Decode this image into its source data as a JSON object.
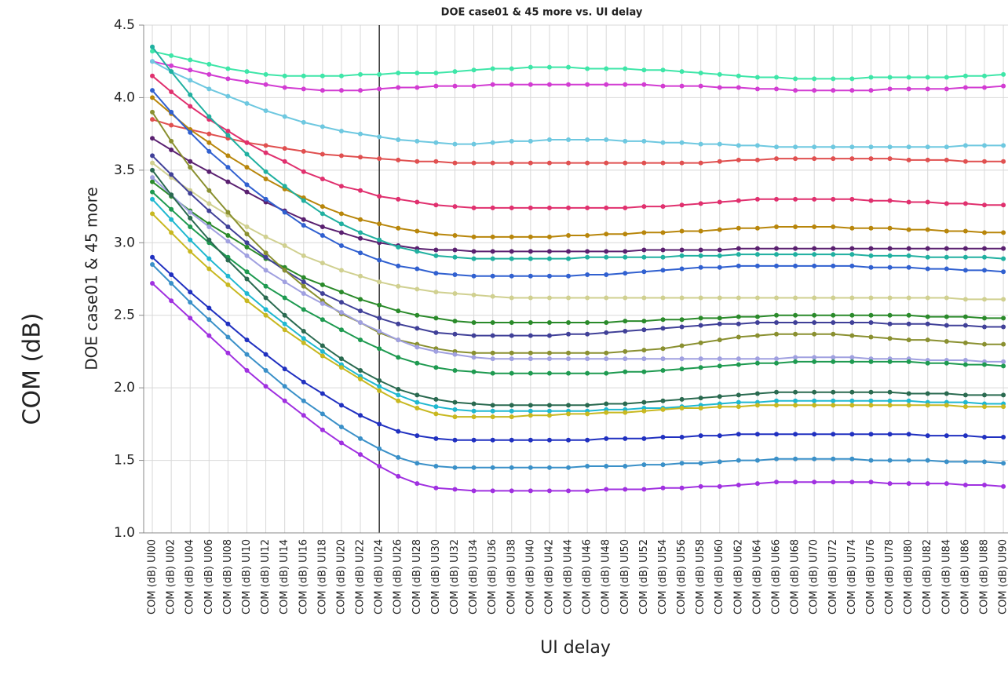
{
  "chart_data": {
    "type": "line",
    "title": "DOE case01 & 45 more vs. UI delay",
    "ylabel": "DOE case01 & 45 more",
    "xlabel": "UI delay",
    "side_label": "COM (dB)",
    "categories": [
      "COM (dB) UI00",
      "COM (dB) UI02",
      "COM (dB) UI04",
      "COM (dB) UI06",
      "COM (dB) UI08",
      "COM (dB) UI10",
      "COM (dB) UI12",
      "COM (dB) UI14",
      "COM (dB) UI16",
      "COM (dB) UI18",
      "COM (dB) UI20",
      "COM (dB) UI22",
      "COM (dB) UI24",
      "COM (dB) UI26",
      "COM (dB) UI28",
      "COM (dB) UI30",
      "COM (dB) UI32",
      "COM (dB) UI34",
      "COM (dB) UI36",
      "COM (dB) UI38",
      "COM (dB) UI40",
      "COM (dB) UI42",
      "COM (dB) UI44",
      "COM (dB) UI46",
      "COM (dB) UI48",
      "COM (dB) UI50",
      "COM (dB) UI52",
      "COM (dB) UI54",
      "COM (dB) UI56",
      "COM (dB) UI58",
      "COM (dB) UI60",
      "COM (dB) UI62",
      "COM (dB) UI64",
      "COM (dB) UI66",
      "COM (dB) UI68",
      "COM (dB) UI70",
      "COM (dB) UI72",
      "COM (dB) UI74",
      "COM (dB) UI76",
      "COM (dB) UI78",
      "COM (dB) UI80",
      "COM (dB) UI82",
      "COM (dB) UI84",
      "COM (dB) UI86",
      "COM (dB) UI88",
      "COM (dB) UI90"
    ],
    "series": [
      {
        "color": "#3ee6a8",
        "values": [
          4.32,
          4.29,
          4.26,
          4.23,
          4.2,
          4.18,
          4.16,
          4.15,
          4.15,
          4.15,
          4.15,
          4.16,
          4.16,
          4.17,
          4.17,
          4.17,
          4.18,
          4.19,
          4.2,
          4.2,
          4.21,
          4.21,
          4.21,
          4.2,
          4.2,
          4.2,
          4.19,
          4.19,
          4.18,
          4.17,
          4.16,
          4.15,
          4.14,
          4.14,
          4.13,
          4.13,
          4.13,
          4.13,
          4.14,
          4.14,
          4.14,
          4.14,
          4.14,
          4.15,
          4.15,
          4.16
        ]
      },
      {
        "color": "#d23cd2",
        "values": [
          4.25,
          4.22,
          4.19,
          4.16,
          4.13,
          4.11,
          4.09,
          4.07,
          4.06,
          4.05,
          4.05,
          4.05,
          4.06,
          4.07,
          4.07,
          4.08,
          4.08,
          4.08,
          4.09,
          4.09,
          4.09,
          4.09,
          4.09,
          4.09,
          4.09,
          4.09,
          4.09,
          4.08,
          4.08,
          4.08,
          4.07,
          4.07,
          4.06,
          4.06,
          4.05,
          4.05,
          4.05,
          4.05,
          4.05,
          4.06,
          4.06,
          4.06,
          4.06,
          4.07,
          4.07,
          4.08
        ]
      },
      {
        "color": "#6ec8e0",
        "values": [
          4.25,
          4.18,
          4.12,
          4.06,
          4.01,
          3.96,
          3.91,
          3.87,
          3.83,
          3.8,
          3.77,
          3.75,
          3.73,
          3.71,
          3.7,
          3.69,
          3.68,
          3.68,
          3.69,
          3.7,
          3.7,
          3.71,
          3.71,
          3.71,
          3.71,
          3.7,
          3.7,
          3.69,
          3.69,
          3.68,
          3.68,
          3.67,
          3.67,
          3.66,
          3.66,
          3.66,
          3.66,
          3.66,
          3.66,
          3.66,
          3.66,
          3.66,
          3.66,
          3.67,
          3.67,
          3.67
        ]
      },
      {
        "color": "#e05050",
        "values": [
          3.85,
          3.81,
          3.78,
          3.75,
          3.72,
          3.69,
          3.67,
          3.65,
          3.63,
          3.61,
          3.6,
          3.59,
          3.58,
          3.57,
          3.56,
          3.56,
          3.55,
          3.55,
          3.55,
          3.55,
          3.55,
          3.55,
          3.55,
          3.55,
          3.55,
          3.55,
          3.55,
          3.55,
          3.55,
          3.55,
          3.56,
          3.57,
          3.57,
          3.58,
          3.58,
          3.58,
          3.58,
          3.58,
          3.58,
          3.58,
          3.57,
          3.57,
          3.57,
          3.56,
          3.56,
          3.56
        ]
      },
      {
        "color": "#e0306e",
        "values": [
          4.15,
          4.04,
          3.94,
          3.85,
          3.77,
          3.69,
          3.62,
          3.56,
          3.49,
          3.44,
          3.39,
          3.36,
          3.32,
          3.3,
          3.28,
          3.26,
          3.25,
          3.24,
          3.24,
          3.24,
          3.24,
          3.24,
          3.24,
          3.24,
          3.24,
          3.24,
          3.25,
          3.25,
          3.26,
          3.27,
          3.28,
          3.29,
          3.3,
          3.3,
          3.3,
          3.3,
          3.3,
          3.3,
          3.29,
          3.29,
          3.28,
          3.28,
          3.27,
          3.27,
          3.26,
          3.26
        ]
      },
      {
        "color": "#b8860b",
        "values": [
          4.0,
          3.89,
          3.78,
          3.69,
          3.6,
          3.52,
          3.44,
          3.37,
          3.31,
          3.25,
          3.2,
          3.16,
          3.13,
          3.1,
          3.08,
          3.06,
          3.05,
          3.04,
          3.04,
          3.04,
          3.04,
          3.04,
          3.05,
          3.05,
          3.06,
          3.06,
          3.07,
          3.07,
          3.08,
          3.08,
          3.09,
          3.1,
          3.1,
          3.11,
          3.11,
          3.11,
          3.11,
          3.1,
          3.1,
          3.1,
          3.09,
          3.09,
          3.08,
          3.08,
          3.07,
          3.07
        ]
      },
      {
        "color": "#5a2070",
        "values": [
          3.72,
          3.64,
          3.56,
          3.49,
          3.42,
          3.35,
          3.28,
          3.22,
          3.16,
          3.11,
          3.07,
          3.03,
          3.0,
          2.98,
          2.96,
          2.95,
          2.95,
          2.94,
          2.94,
          2.94,
          2.94,
          2.94,
          2.94,
          2.94,
          2.94,
          2.94,
          2.95,
          2.95,
          2.95,
          2.95,
          2.95,
          2.96,
          2.96,
          2.96,
          2.96,
          2.96,
          2.96,
          2.96,
          2.96,
          2.96,
          2.96,
          2.96,
          2.96,
          2.96,
          2.96,
          2.96
        ]
      },
      {
        "color": "#20b0a0",
        "values": [
          4.35,
          4.18,
          4.02,
          3.87,
          3.74,
          3.61,
          3.49,
          3.39,
          3.29,
          3.2,
          3.13,
          3.07,
          3.02,
          2.97,
          2.94,
          2.91,
          2.9,
          2.89,
          2.89,
          2.89,
          2.89,
          2.89,
          2.89,
          2.9,
          2.9,
          2.9,
          2.9,
          2.9,
          2.91,
          2.91,
          2.91,
          2.92,
          2.92,
          2.92,
          2.92,
          2.92,
          2.92,
          2.92,
          2.91,
          2.91,
          2.91,
          2.9,
          2.9,
          2.9,
          2.9,
          2.89
        ]
      },
      {
        "color": "#3060d0",
        "values": [
          4.05,
          3.9,
          3.76,
          3.63,
          3.52,
          3.4,
          3.3,
          3.21,
          3.12,
          3.05,
          2.98,
          2.93,
          2.88,
          2.84,
          2.82,
          2.79,
          2.78,
          2.77,
          2.77,
          2.77,
          2.77,
          2.77,
          2.77,
          2.78,
          2.78,
          2.79,
          2.8,
          2.81,
          2.82,
          2.83,
          2.83,
          2.84,
          2.84,
          2.84,
          2.84,
          2.84,
          2.84,
          2.84,
          2.83,
          2.83,
          2.83,
          2.82,
          2.82,
          2.81,
          2.81,
          2.8
        ]
      },
      {
        "color": "#d0d090",
        "values": [
          3.55,
          3.45,
          3.36,
          3.27,
          3.19,
          3.11,
          3.04,
          2.98,
          2.91,
          2.86,
          2.81,
          2.77,
          2.73,
          2.7,
          2.68,
          2.66,
          2.65,
          2.64,
          2.63,
          2.62,
          2.62,
          2.62,
          2.62,
          2.62,
          2.62,
          2.62,
          2.62,
          2.62,
          2.62,
          2.62,
          2.62,
          2.62,
          2.62,
          2.62,
          2.62,
          2.62,
          2.62,
          2.62,
          2.62,
          2.62,
          2.62,
          2.62,
          2.62,
          2.61,
          2.61,
          2.61
        ]
      },
      {
        "color": "#2a8a2a",
        "values": [
          3.42,
          3.32,
          3.22,
          3.13,
          3.05,
          2.97,
          2.89,
          2.83,
          2.76,
          2.71,
          2.66,
          2.61,
          2.57,
          2.53,
          2.5,
          2.48,
          2.46,
          2.45,
          2.45,
          2.45,
          2.45,
          2.45,
          2.45,
          2.45,
          2.45,
          2.46,
          2.46,
          2.47,
          2.47,
          2.48,
          2.48,
          2.49,
          2.49,
          2.5,
          2.5,
          2.5,
          2.5,
          2.5,
          2.5,
          2.5,
          2.5,
          2.49,
          2.49,
          2.49,
          2.48,
          2.48
        ]
      },
      {
        "color": "#404098",
        "values": [
          3.6,
          3.47,
          3.34,
          3.22,
          3.11,
          3.0,
          2.9,
          2.81,
          2.73,
          2.65,
          2.59,
          2.53,
          2.48,
          2.44,
          2.41,
          2.38,
          2.37,
          2.36,
          2.36,
          2.36,
          2.36,
          2.36,
          2.37,
          2.37,
          2.38,
          2.39,
          2.4,
          2.41,
          2.42,
          2.43,
          2.44,
          2.44,
          2.45,
          2.45,
          2.45,
          2.45,
          2.45,
          2.45,
          2.45,
          2.44,
          2.44,
          2.44,
          2.43,
          2.43,
          2.42,
          2.42
        ]
      },
      {
        "color": "#8a9030",
        "values": [
          3.9,
          3.7,
          3.52,
          3.36,
          3.21,
          3.06,
          2.93,
          2.81,
          2.7,
          2.6,
          2.51,
          2.45,
          2.38,
          2.33,
          2.3,
          2.27,
          2.25,
          2.24,
          2.24,
          2.24,
          2.24,
          2.24,
          2.24,
          2.24,
          2.24,
          2.25,
          2.26,
          2.27,
          2.29,
          2.31,
          2.33,
          2.35,
          2.36,
          2.37,
          2.37,
          2.37,
          2.37,
          2.36,
          2.35,
          2.34,
          2.33,
          2.33,
          2.32,
          2.31,
          2.3,
          2.3
        ]
      },
      {
        "color": "#a0a0e0",
        "values": [
          3.45,
          3.33,
          3.21,
          3.11,
          3.01,
          2.91,
          2.81,
          2.73,
          2.65,
          2.58,
          2.52,
          2.45,
          2.39,
          2.33,
          2.28,
          2.25,
          2.23,
          2.21,
          2.2,
          2.2,
          2.2,
          2.2,
          2.2,
          2.2,
          2.2,
          2.2,
          2.2,
          2.2,
          2.2,
          2.2,
          2.2,
          2.2,
          2.2,
          2.2,
          2.21,
          2.21,
          2.21,
          2.21,
          2.2,
          2.2,
          2.2,
          2.19,
          2.19,
          2.19,
          2.18,
          2.18
        ]
      },
      {
        "color": "#1e9a50",
        "values": [
          3.35,
          3.23,
          3.11,
          3.0,
          2.9,
          2.8,
          2.7,
          2.62,
          2.54,
          2.47,
          2.4,
          2.33,
          2.27,
          2.21,
          2.17,
          2.14,
          2.12,
          2.11,
          2.1,
          2.1,
          2.1,
          2.1,
          2.1,
          2.1,
          2.1,
          2.11,
          2.11,
          2.12,
          2.13,
          2.14,
          2.15,
          2.16,
          2.17,
          2.17,
          2.18,
          2.18,
          2.18,
          2.18,
          2.18,
          2.18,
          2.18,
          2.17,
          2.17,
          2.16,
          2.16,
          2.15
        ]
      },
      {
        "color": "#2a6a50",
        "values": [
          3.5,
          3.33,
          3.17,
          3.02,
          2.88,
          2.75,
          2.62,
          2.5,
          2.39,
          2.29,
          2.2,
          2.12,
          2.05,
          1.99,
          1.95,
          1.92,
          1.9,
          1.89,
          1.88,
          1.88,
          1.88,
          1.88,
          1.88,
          1.88,
          1.89,
          1.89,
          1.9,
          1.91,
          1.92,
          1.93,
          1.94,
          1.95,
          1.96,
          1.97,
          1.97,
          1.97,
          1.97,
          1.97,
          1.97,
          1.97,
          1.96,
          1.96,
          1.96,
          1.95,
          1.95,
          1.95
        ]
      },
      {
        "color": "#20b8d0",
        "values": [
          3.3,
          3.16,
          3.02,
          2.89,
          2.77,
          2.65,
          2.54,
          2.44,
          2.34,
          2.25,
          2.16,
          2.08,
          2.01,
          1.95,
          1.9,
          1.87,
          1.85,
          1.84,
          1.84,
          1.84,
          1.84,
          1.84,
          1.84,
          1.84,
          1.85,
          1.85,
          1.86,
          1.86,
          1.87,
          1.88,
          1.89,
          1.9,
          1.9,
          1.91,
          1.91,
          1.91,
          1.91,
          1.91,
          1.91,
          1.91,
          1.91,
          1.9,
          1.9,
          1.9,
          1.89,
          1.89
        ]
      },
      {
        "color": "#c8b820",
        "values": [
          3.2,
          3.07,
          2.94,
          2.82,
          2.71,
          2.6,
          2.5,
          2.4,
          2.31,
          2.22,
          2.14,
          2.06,
          1.98,
          1.91,
          1.86,
          1.82,
          1.8,
          1.8,
          1.8,
          1.8,
          1.81,
          1.81,
          1.82,
          1.82,
          1.83,
          1.83,
          1.84,
          1.85,
          1.86,
          1.86,
          1.87,
          1.87,
          1.88,
          1.88,
          1.88,
          1.88,
          1.88,
          1.88,
          1.88,
          1.88,
          1.88,
          1.88,
          1.88,
          1.87,
          1.87,
          1.87
        ]
      },
      {
        "color": "#2030c0",
        "values": [
          2.9,
          2.78,
          2.66,
          2.55,
          2.44,
          2.33,
          2.23,
          2.13,
          2.04,
          1.96,
          1.88,
          1.81,
          1.75,
          1.7,
          1.67,
          1.65,
          1.64,
          1.64,
          1.64,
          1.64,
          1.64,
          1.64,
          1.64,
          1.64,
          1.65,
          1.65,
          1.65,
          1.66,
          1.66,
          1.67,
          1.67,
          1.68,
          1.68,
          1.68,
          1.68,
          1.68,
          1.68,
          1.68,
          1.68,
          1.68,
          1.68,
          1.67,
          1.67,
          1.67,
          1.66,
          1.66
        ]
      },
      {
        "color": "#3a90c8",
        "values": [
          2.85,
          2.72,
          2.59,
          2.47,
          2.35,
          2.23,
          2.12,
          2.01,
          1.91,
          1.82,
          1.73,
          1.65,
          1.58,
          1.52,
          1.48,
          1.46,
          1.45,
          1.45,
          1.45,
          1.45,
          1.45,
          1.45,
          1.45,
          1.46,
          1.46,
          1.46,
          1.47,
          1.47,
          1.48,
          1.48,
          1.49,
          1.5,
          1.5,
          1.51,
          1.51,
          1.51,
          1.51,
          1.51,
          1.5,
          1.5,
          1.5,
          1.5,
          1.49,
          1.49,
          1.49,
          1.48
        ]
      },
      {
        "color": "#a030e0",
        "values": [
          2.72,
          2.6,
          2.48,
          2.36,
          2.24,
          2.12,
          2.01,
          1.91,
          1.81,
          1.71,
          1.62,
          1.54,
          1.46,
          1.39,
          1.34,
          1.31,
          1.3,
          1.29,
          1.29,
          1.29,
          1.29,
          1.29,
          1.29,
          1.29,
          1.3,
          1.3,
          1.3,
          1.31,
          1.31,
          1.32,
          1.32,
          1.33,
          1.34,
          1.35,
          1.35,
          1.35,
          1.35,
          1.35,
          1.35,
          1.34,
          1.34,
          1.34,
          1.34,
          1.33,
          1.33,
          1.32
        ]
      }
    ],
    "ylim": [
      1,
      4.5
    ],
    "yticks": [
      {
        "value": 1,
        "label": "1.0"
      },
      1.5,
      {
        "value": 2,
        "label": "2.0"
      },
      2.5,
      {
        "value": 3,
        "label": "3.0"
      },
      3.5,
      {
        "value": 4,
        "label": "4.0"
      },
      4.5
    ],
    "grid": true,
    "vline": "COM (dB) UI24"
  }
}
